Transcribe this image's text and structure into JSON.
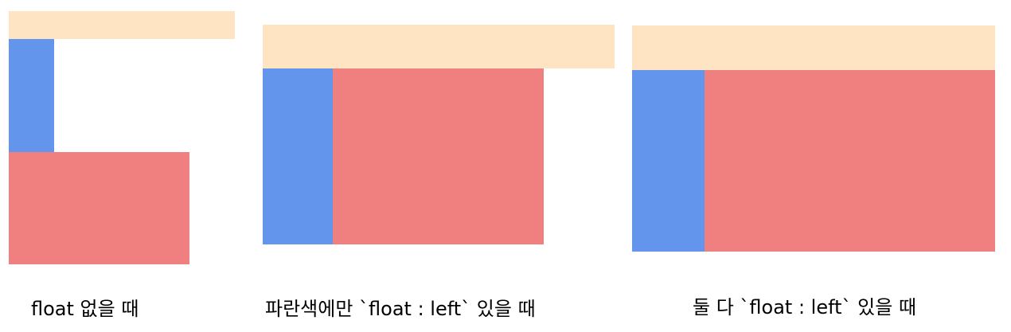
{
  "colors": {
    "header": "#ffe4c4",
    "blue": "#6495ed",
    "red": "#f08080",
    "text": "#000000"
  },
  "panels": [
    {
      "caption": "float 없을 때"
    },
    {
      "caption": "파란색에만 `float : left` 있을 때"
    },
    {
      "caption": "둘 다 `float : left` 있을 때"
    }
  ]
}
